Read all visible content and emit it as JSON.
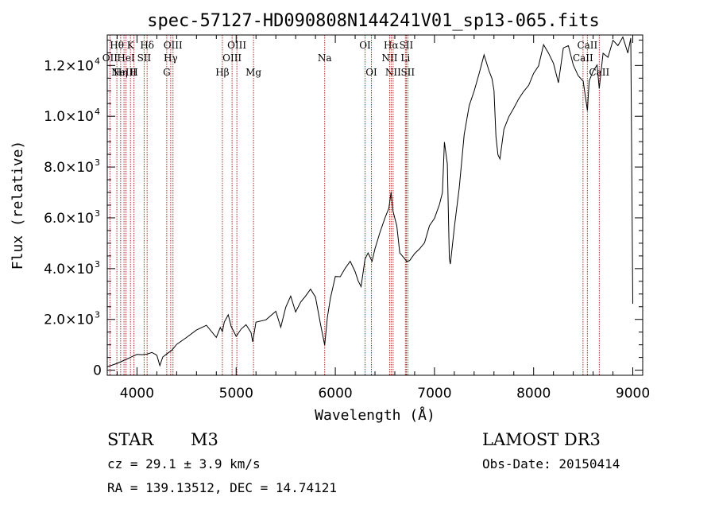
{
  "chart_data": {
    "type": "line",
    "title": "spec-57127-HD090808N144241V01_sp13-065.fits",
    "xlabel": "Wavelength (Å)",
    "ylabel": "Flux (relative)",
    "xlim": [
      3700,
      9100
    ],
    "ylim": [
      -200,
      13200
    ],
    "x_ticks": [
      {
        "value": 4000,
        "label": "4000"
      },
      {
        "value": 5000,
        "label": "5000"
      },
      {
        "value": 6000,
        "label": "6000"
      },
      {
        "value": 7000,
        "label": "7000"
      },
      {
        "value": 8000,
        "label": "8000"
      },
      {
        "value": 9000,
        "label": "9000"
      }
    ],
    "y_ticks": [
      {
        "value": 0,
        "mantissa": "0",
        "exponent": ""
      },
      {
        "value": 2000,
        "mantissa": "2.0×10",
        "exponent": "3"
      },
      {
        "value": 4000,
        "mantissa": "4.0×10",
        "exponent": "3"
      },
      {
        "value": 6000,
        "mantissa": "6.0×10",
        "exponent": "3"
      },
      {
        "value": 8000,
        "mantissa": "8.0×10",
        "exponent": "3"
      },
      {
        "value": 10000,
        "mantissa": "1.0×10",
        "exponent": "4"
      },
      {
        "value": 12000,
        "mantissa": "1.2×10",
        "exponent": "4"
      }
    ],
    "spectrum": {
      "x": [
        3700,
        3800,
        3900,
        3950,
        4000,
        4050,
        4100,
        4150,
        4200,
        4230,
        4260,
        4300,
        4350,
        4400,
        4500,
        4600,
        4700,
        4800,
        4840,
        4861,
        4880,
        4920,
        4950,
        4980,
        5000,
        5050,
        5100,
        5150,
        5167,
        5200,
        5300,
        5400,
        5450,
        5500,
        5550,
        5600,
        5650,
        5700,
        5750,
        5800,
        5850,
        5893,
        5920,
        5950,
        6000,
        6050,
        6100,
        6150,
        6200,
        6230,
        6260,
        6300,
        6330,
        6370,
        6400,
        6450,
        6500,
        6540,
        6563,
        6580,
        6620,
        6650,
        6700,
        6720,
        6750,
        6800,
        6850,
        6900,
        6950,
        7000,
        7050,
        7080,
        7100,
        7130,
        7150,
        7160,
        7200,
        7250,
        7300,
        7350,
        7400,
        7450,
        7500,
        7550,
        7580,
        7600,
        7620,
        7640,
        7660,
        7700,
        7750,
        7800,
        7850,
        7900,
        7950,
        8000,
        8050,
        8100,
        8150,
        8200,
        8250,
        8300,
        8350,
        8400,
        8450,
        8500,
        8542,
        8560,
        8600,
        8640,
        8662,
        8700,
        8750,
        8800,
        8850,
        8900,
        8950,
        8980,
        9000
      ],
      "y": [
        150,
        250,
        450,
        550,
        600,
        620,
        650,
        680,
        600,
        200,
        500,
        650,
        800,
        1000,
        1300,
        1600,
        1750,
        1300,
        1700,
        1500,
        1900,
        2200,
        1700,
        1500,
        1350,
        1600,
        1800,
        1500,
        1100,
        1900,
        2000,
        2300,
        1700,
        2500,
        2900,
        2300,
        2700,
        2900,
        3200,
        2900,
        1800,
        1000,
        2100,
        2800,
        3700,
        3700,
        4000,
        4300,
        3900,
        3500,
        3300,
        4400,
        4600,
        4300,
        4800,
        5400,
        6000,
        6400,
        7000,
        6300,
        5700,
        4600,
        4400,
        4300,
        4300,
        4600,
        4800,
        5000,
        5700,
        6000,
        6500,
        7000,
        9000,
        8100,
        4400,
        4200,
        5600,
        7200,
        9300,
        10400,
        11000,
        11700,
        12400,
        11800,
        11500,
        11000,
        9200,
        8500,
        8300,
        9500,
        10000,
        10300,
        10700,
        11000,
        11200,
        11700,
        12000,
        12800,
        12500,
        12100,
        11300,
        12700,
        12800,
        12000,
        11600,
        11400,
        10200,
        11400,
        11800,
        12000,
        11100,
        12500,
        12300,
        13000,
        12800,
        13100,
        12500,
        13100,
        2600
      ]
    },
    "lines": [
      {
        "wl": 3727,
        "label": "OII",
        "row": 2
      },
      {
        "wl": 3797,
        "label": "Hθ",
        "row": 1
      },
      {
        "wl": 3835,
        "label": "Hη",
        "row": 3
      },
      {
        "wl": 3869,
        "label": "NeIII",
        "row": 3
      },
      {
        "wl": 3889,
        "label": "HeI",
        "row": 2
      },
      {
        "wl": 3934,
        "label": "K",
        "row": 1
      },
      {
        "wl": 3969,
        "label": "H",
        "row": 3
      },
      {
        "wl": 4072,
        "label": "SII",
        "row": 2
      },
      {
        "wl": 4102,
        "label": "Hδ",
        "row": 1
      },
      {
        "wl": 4300,
        "label": "G",
        "row": 3
      },
      {
        "wl": 4340,
        "label": "Hγ",
        "row": 2
      },
      {
        "wl": 4363,
        "label": "OIII",
        "row": 1
      },
      {
        "wl": 4861,
        "label": "Hβ",
        "row": 3
      },
      {
        "wl": 4959,
        "label": "OIII",
        "row": 2
      },
      {
        "wl": 5007,
        "label": "OIII",
        "row": 1
      },
      {
        "wl": 5175,
        "label": "Mg",
        "row": 3
      },
      {
        "wl": 5893,
        "label": "Na",
        "row": 2
      },
      {
        "wl": 6300,
        "label": "OI",
        "row": 1
      },
      {
        "wl": 6364,
        "label": "OI",
        "row": 3
      },
      {
        "wl": 6548,
        "label": "NII",
        "row": 2
      },
      {
        "wl": 6563,
        "label": "Hα",
        "row": 1
      },
      {
        "wl": 6583,
        "label": "NII",
        "row": 3
      },
      {
        "wl": 6707,
        "label": "Li",
        "row": 2
      },
      {
        "wl": 6716,
        "label": "SII",
        "row": 1
      },
      {
        "wl": 6731,
        "label": "SII",
        "row": 3
      },
      {
        "wl": 8498,
        "label": "CaII",
        "row": 2
      },
      {
        "wl": 8542,
        "label": "CaII",
        "row": 1
      },
      {
        "wl": 8662,
        "label": "CaII",
        "row": 3
      }
    ],
    "line_color": "#b22222",
    "grid": false
  },
  "footer": {
    "class_label": "STAR",
    "subclass": "M3",
    "survey": "LAMOST DR3",
    "cz": "cz = 29.1 ± 3.9 km/s",
    "obs_date": "Obs-Date: 20150414",
    "coords": "RA = 139.13512, DEC =  14.74121"
  }
}
